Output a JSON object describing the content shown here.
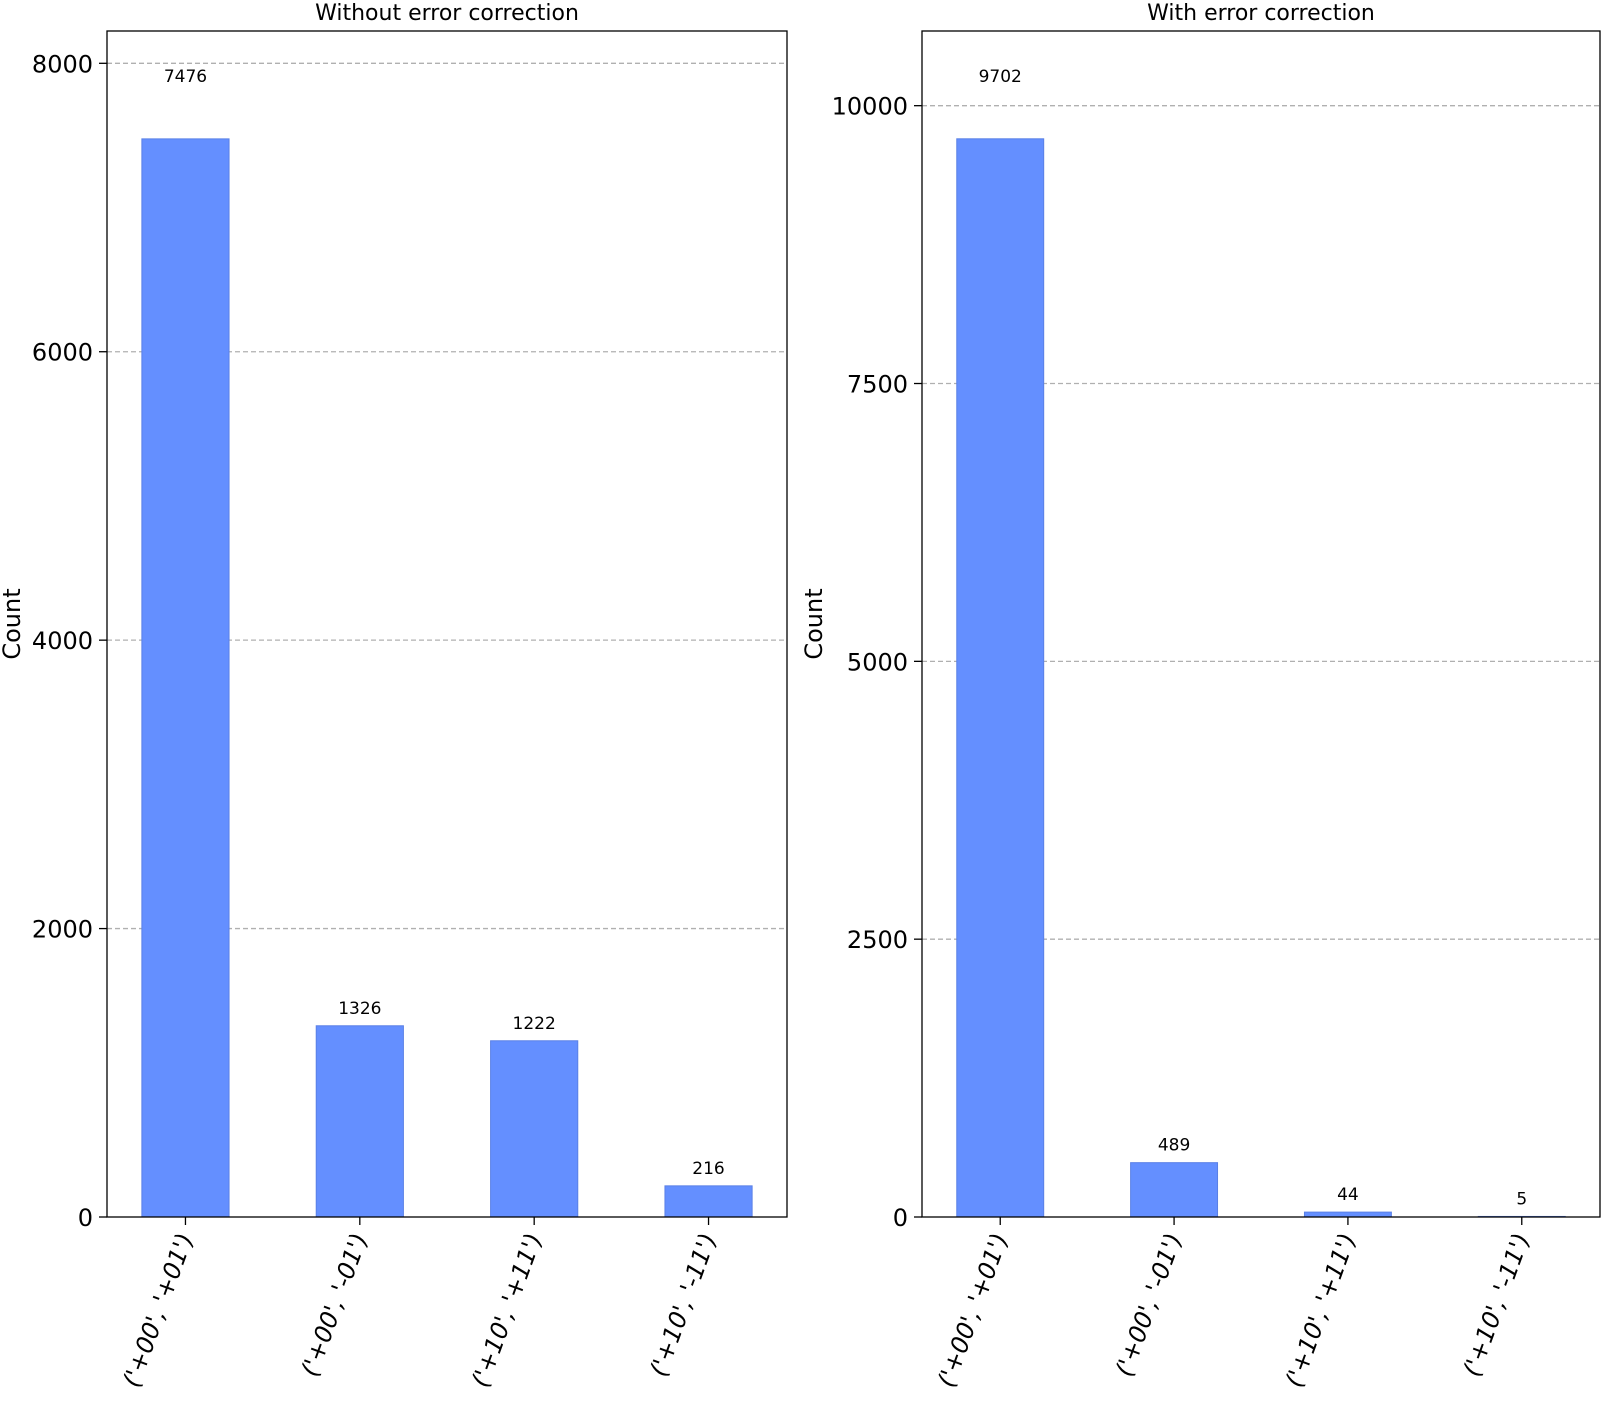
{
  "colors": {
    "bar": "#648fff",
    "bar_edge": "#5a80e6",
    "grid": "#b0b0b0",
    "axis": "#000000"
  },
  "chart_data": [
    {
      "type": "bar",
      "title": "Without error correction",
      "xlabel": "",
      "ylabel": "Count",
      "categories": [
        "('+00', '+01')",
        "('+00', '-01')",
        "('+10', '+11')",
        "('+10', '-11')"
      ],
      "values": [
        7476,
        1326,
        1222,
        216
      ],
      "yticks": [
        0,
        2000,
        4000,
        6000,
        8000
      ],
      "ylim": [
        0,
        8224
      ],
      "grid": true,
      "grid_style": "dashed-horizontal"
    },
    {
      "type": "bar",
      "title": "With error correction",
      "xlabel": "",
      "ylabel": "Count",
      "categories": [
        "('+00', '+01')",
        "('+00', '-01')",
        "('+10', '+11')",
        "('+10', '-11')"
      ],
      "values": [
        9702,
        489,
        44,
        5
      ],
      "yticks": [
        0,
        2500,
        5000,
        7500,
        10000
      ],
      "ylim": [
        0,
        10672
      ],
      "grid": true,
      "grid_style": "dashed-horizontal"
    }
  ]
}
